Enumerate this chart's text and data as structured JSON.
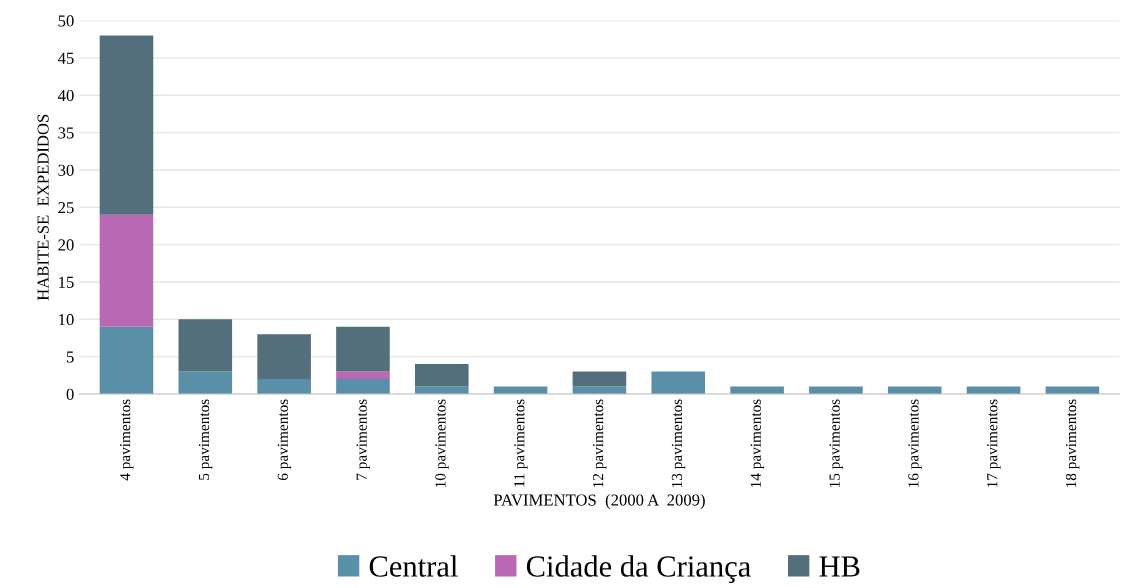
{
  "chart_data": {
    "type": "bar",
    "stacked": true,
    "xlabel": "PAVIMENTOS  (2000 A  2009)",
    "ylabel": "HABITE-SE  EXPEDIDOS",
    "categories": [
      "4 pavimentos",
      "5 pavimentos",
      "6 pavimentos",
      "7 pavimentos",
      "10 pavimentos",
      "11 pavimentos",
      "12 pavimentos",
      "13 pavimentos",
      "14 pavimentos",
      "15 pavimentos",
      "16 pavimentos",
      "17 pavimentos",
      "18 pavimentos"
    ],
    "series": [
      {
        "name": "Central",
        "color": "#5a8fa8",
        "values": [
          9,
          3,
          2,
          2,
          1,
          1,
          1,
          3,
          1,
          1,
          1,
          1,
          1
        ]
      },
      {
        "name": "Cidade da Criança",
        "color": "#b968b4",
        "values": [
          15,
          0,
          0,
          1,
          0,
          0,
          0,
          0,
          0,
          0,
          0,
          0,
          0
        ]
      },
      {
        "name": "HB",
        "color": "#546f7c",
        "values": [
          24,
          7,
          6,
          6,
          3,
          0,
          2,
          0,
          0,
          0,
          0,
          0,
          0
        ]
      }
    ],
    "ylim": [
      0,
      50
    ],
    "yticks": [
      0,
      5,
      10,
      15,
      20,
      25,
      30,
      35,
      40,
      45,
      50
    ],
    "grid": "y",
    "legend": "bottom"
  }
}
